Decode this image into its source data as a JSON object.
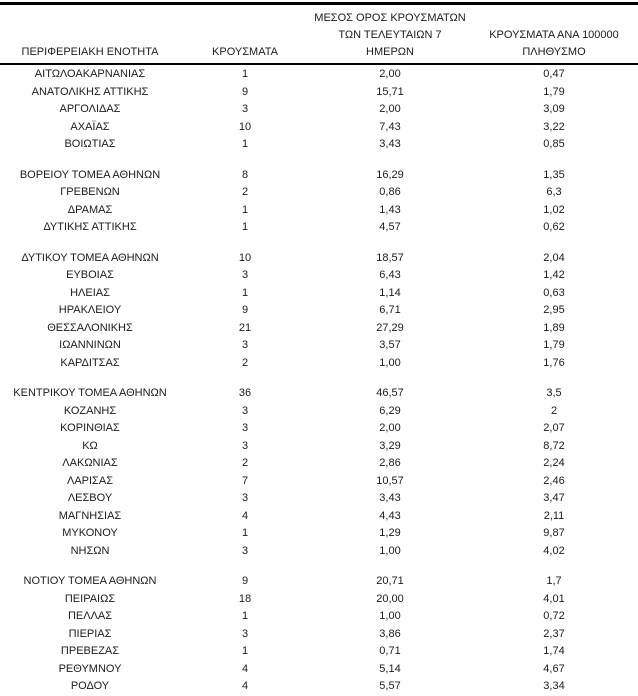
{
  "colors": {
    "background": "#ffffff",
    "text": "#1c1c1c",
    "rule": "#000000"
  },
  "table": {
    "columns": [
      {
        "label": "ΠΕΡΙΦΕΡΕΙΑΚΗ ΕΝΟΤΗΤΑ"
      },
      {
        "label": "ΚΡΟΥΣΜΑΤΑ"
      },
      {
        "label": "ΜΕΣΟΣ ΟΡΟΣ ΚΡΟΥΣΜΑΤΩΝ\nΤΩΝ ΤΕΛΕΥΤΑΙΩΝ 7\nΗΜΕΡΩΝ"
      },
      {
        "label": "ΚΡΟΥΣΜΑΤΑ ΑΝΑ 100000\nΠΛΗΘΥΣΜΟ"
      }
    ],
    "groups": [
      {
        "rows": [
          [
            "ΑΙΤΩΛΟΑΚΑΡΝΑΝΙΑΣ",
            "1",
            "2,00",
            "0,47"
          ],
          [
            "ΑΝΑΤΟΛΙΚΗΣ ΑΤΤΙΚΗΣ",
            "9",
            "15,71",
            "1,79"
          ],
          [
            "ΑΡΓΟΛΙΔΑΣ",
            "3",
            "2,00",
            "3,09"
          ],
          [
            "ΑΧΑΪΑΣ",
            "10",
            "7,43",
            "3,22"
          ],
          [
            "ΒΟΙΩΤΙΑΣ",
            "1",
            "3,43",
            "0,85"
          ]
        ]
      },
      {
        "rows": [
          [
            "ΒΟΡΕΙΟΥ ΤΟΜΕΑ ΑΘΗΝΩΝ",
            "8",
            "16,29",
            "1,35"
          ],
          [
            "ΓΡΕΒΕΝΩΝ",
            "2",
            "0,86",
            "6,3"
          ],
          [
            "ΔΡΑΜΑΣ",
            "1",
            "1,43",
            "1,02"
          ],
          [
            "ΔΥΤΙΚΗΣ ΑΤΤΙΚΗΣ",
            "1",
            "4,57",
            "0,62"
          ]
        ]
      },
      {
        "rows": [
          [
            "ΔΥΤΙΚΟΥ ΤΟΜΕΑ ΑΘΗΝΩΝ",
            "10",
            "18,57",
            "2,04"
          ],
          [
            "ΕΥΒΟΙΑΣ",
            "3",
            "6,43",
            "1,42"
          ],
          [
            "ΗΛΕΙΑΣ",
            "1",
            "1,14",
            "0,63"
          ],
          [
            "ΗΡΑΚΛΕΙΟΥ",
            "9",
            "6,71",
            "2,95"
          ],
          [
            "ΘΕΣΣΑΛΟΝΙΚΗΣ",
            "21",
            "27,29",
            "1,89"
          ],
          [
            "ΙΩΑΝΝΙΝΩΝ",
            "3",
            "3,57",
            "1,79"
          ],
          [
            "ΚΑΡΔΙΤΣΑΣ",
            "2",
            "1,00",
            "1,76"
          ]
        ]
      },
      {
        "rows": [
          [
            "ΚΕΝΤΡΙΚΟΥ ΤΟΜΕΑ ΑΘΗΝΩΝ",
            "36",
            "46,57",
            "3,5"
          ],
          [
            "ΚΟΖΑΝΗΣ",
            "3",
            "6,29",
            "2"
          ],
          [
            "ΚΟΡΙΝΘΙΑΣ",
            "3",
            "2,00",
            "2,07"
          ],
          [
            "ΚΩ",
            "3",
            "3,29",
            "8,72"
          ],
          [
            "ΛΑΚΩΝΙΑΣ",
            "2",
            "2,86",
            "2,24"
          ],
          [
            "ΛΑΡΙΣΑΣ",
            "7",
            "10,57",
            "2,46"
          ],
          [
            "ΛΕΣΒΟΥ",
            "3",
            "3,43",
            "3,47"
          ],
          [
            "ΜΑΓΝΗΣΙΑΣ",
            "4",
            "4,43",
            "2,11"
          ],
          [
            "ΜΥΚΟΝΟΥ",
            "1",
            "1,29",
            "9,87"
          ],
          [
            "ΝΗΣΩΝ",
            "3",
            "1,00",
            "4,02"
          ]
        ]
      },
      {
        "rows": [
          [
            "ΝΟΤΙΟΥ ΤΟΜΕΑ ΑΘΗΝΩΝ",
            "9",
            "20,71",
            "1,7"
          ],
          [
            "ΠΕΙΡΑΙΩΣ",
            "18",
            "20,00",
            "4,01"
          ],
          [
            "ΠΕΛΛΑΣ",
            "1",
            "1,00",
            "0,72"
          ],
          [
            "ΠΙΕΡΙΑΣ",
            "3",
            "3,86",
            "2,37"
          ],
          [
            "ΠΡΕΒΕΖΑΣ",
            "1",
            "0,71",
            "1,74"
          ],
          [
            "ΡΕΘΥΜΝΟΥ",
            "4",
            "5,14",
            "4,67"
          ],
          [
            "ΡΟΔΟΥ",
            "4",
            "5,57",
            "3,34"
          ]
        ]
      }
    ]
  }
}
